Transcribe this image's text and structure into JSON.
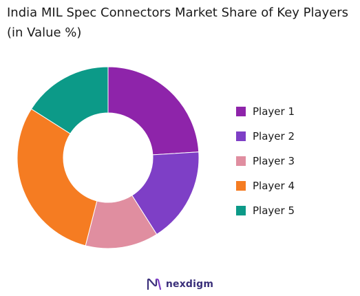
{
  "chart_data": {
    "type": "pie",
    "style": "donut",
    "title": "India MIL Spec Connectors Market Share of Key Players (in Value %)",
    "categories": [
      "Player 1",
      "Player 2",
      "Player 3",
      "Player 4",
      "Player 5"
    ],
    "values": [
      24,
      17,
      13,
      30,
      16
    ],
    "colors": [
      "#8e24aa",
      "#7e3fc6",
      "#e08ea0",
      "#f57c22",
      "#0c9a88"
    ],
    "legend_position": "right",
    "grid": false
  },
  "footer": {
    "brand": "nexdigm"
  }
}
